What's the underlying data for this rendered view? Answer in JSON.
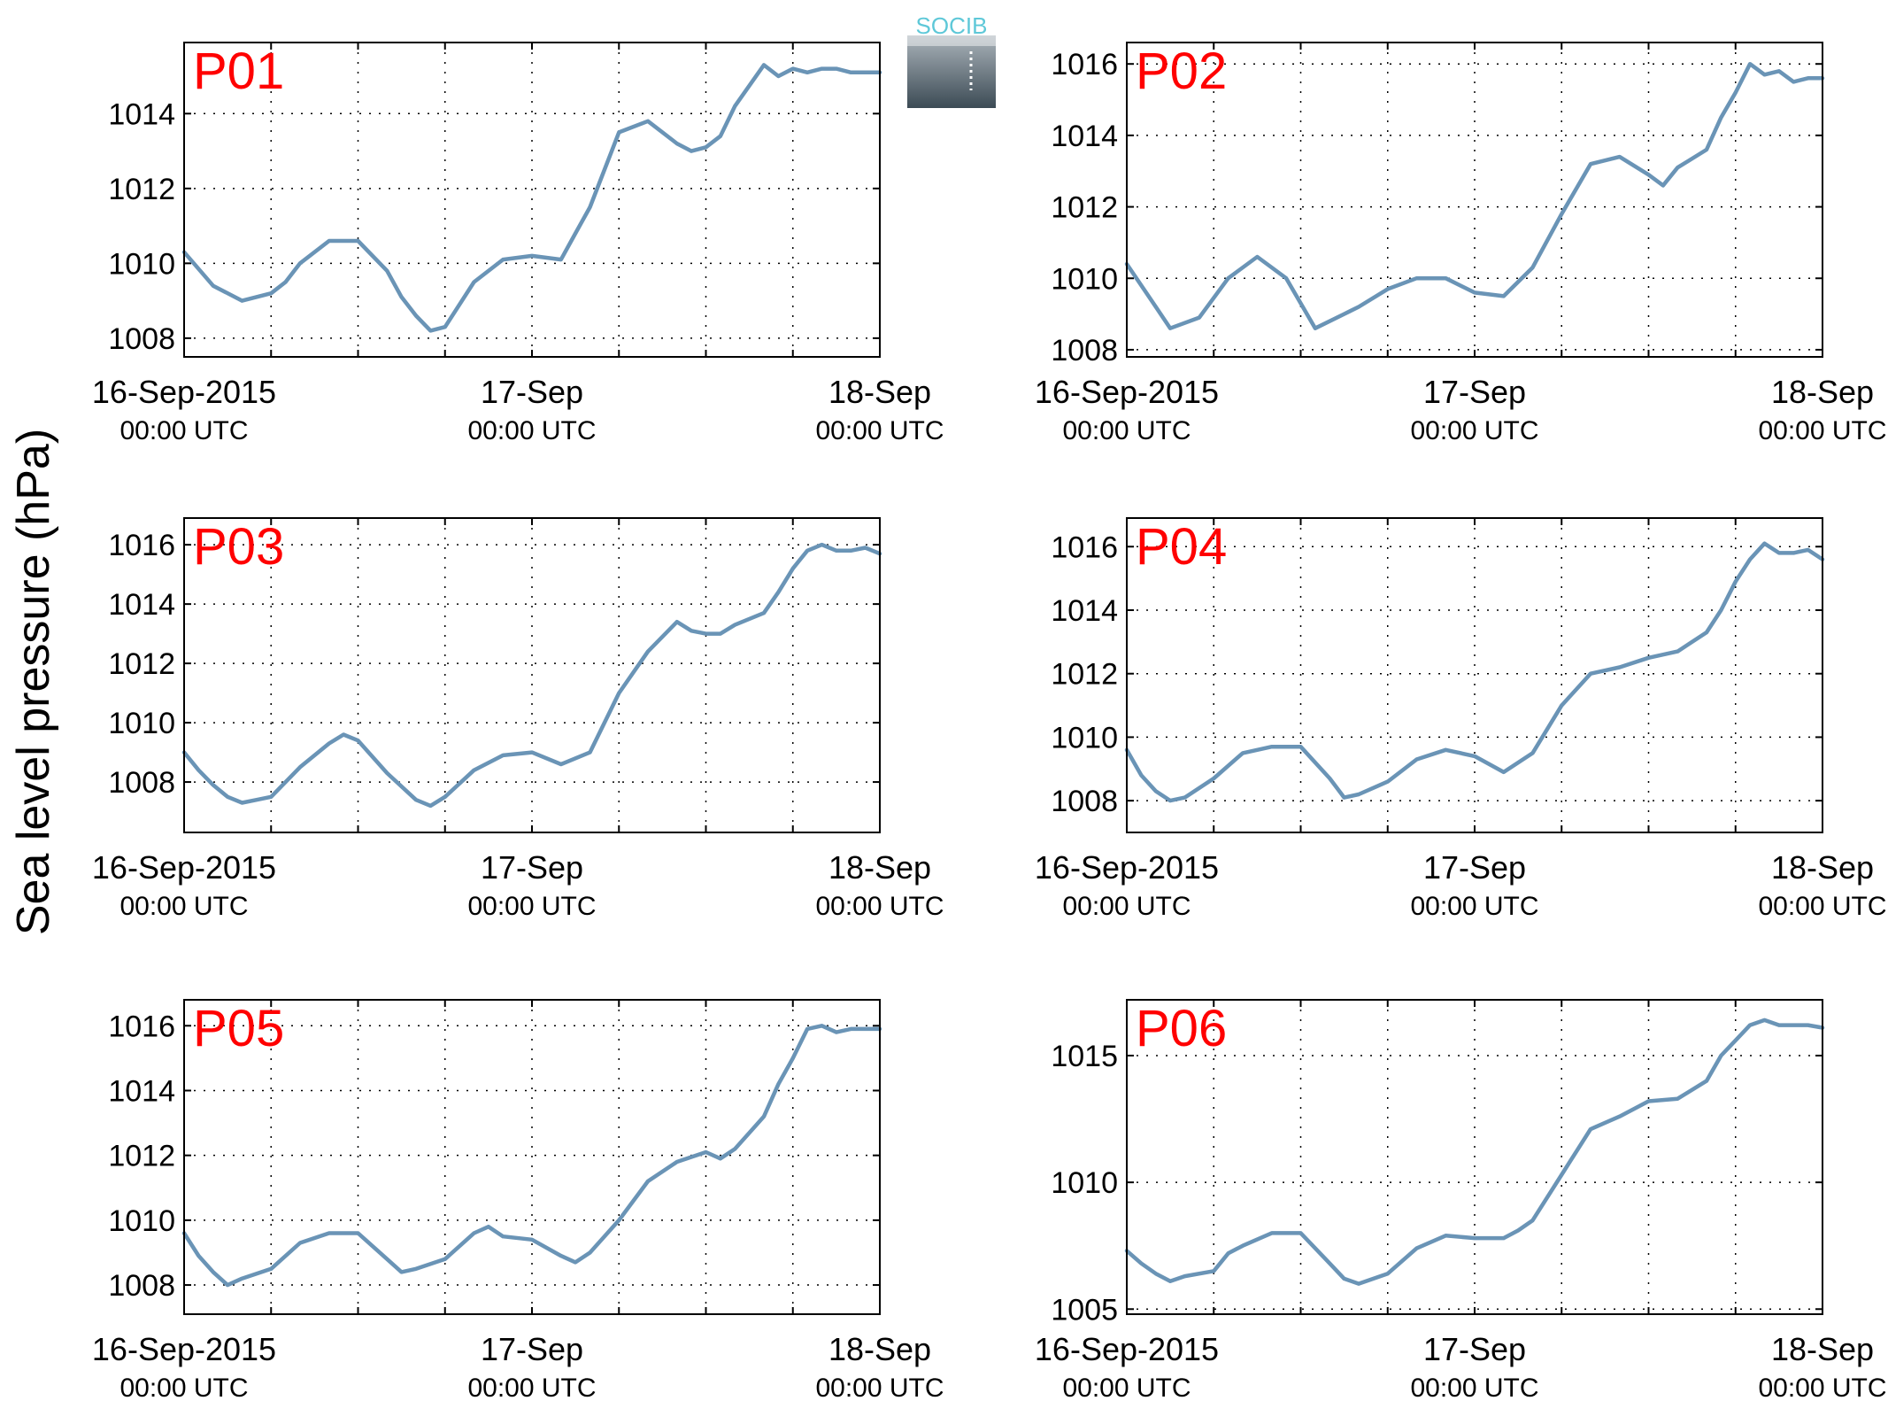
{
  "figure": {
    "ylabel": "Sea level pressure (hPa)",
    "logo_text": "SOCIB",
    "line_color": "#6a94b6",
    "panel_label_color": "#ff0000",
    "x_tick_labels": [
      {
        "date": "16-Sep-2015",
        "time": "00:00 UTC"
      },
      {
        "date": "17-Sep",
        "time": "00:00 UTC"
      },
      {
        "date": "18-Sep",
        "time": "00:00 UTC"
      }
    ]
  },
  "chart_data": [
    {
      "type": "line",
      "title": "P01",
      "xlabel": "",
      "ylabel": "Sea level pressure (hPa)",
      "x_unit": "hours since 16-Sep-2015 00:00 UTC",
      "xlim": [
        0,
        48
      ],
      "ylim": [
        1007.5,
        1015.9
      ],
      "yticks": [
        1008,
        1010,
        1012,
        1014
      ],
      "grid": true,
      "x": [
        0,
        2,
        4,
        6,
        7,
        8,
        10,
        12,
        14,
        15,
        16,
        17,
        18,
        20,
        22,
        24,
        26,
        27,
        28,
        30,
        32,
        34,
        35,
        36,
        37,
        38,
        40,
        41,
        42,
        43,
        44,
        45,
        46,
        47,
        48
      ],
      "values": [
        1010.3,
        1009.4,
        1009.0,
        1009.2,
        1009.5,
        1010.0,
        1010.6,
        1010.6,
        1009.8,
        1009.1,
        1008.6,
        1008.2,
        1008.3,
        1009.5,
        1010.1,
        1010.2,
        1010.1,
        1010.8,
        1011.5,
        1013.5,
        1013.8,
        1013.2,
        1013.0,
        1013.1,
        1013.4,
        1014.2,
        1015.3,
        1015.0,
        1015.2,
        1015.1,
        1015.2,
        1015.2,
        1015.1,
        1015.1,
        1015.1
      ]
    },
    {
      "type": "line",
      "title": "P02",
      "xlabel": "",
      "ylabel": "Sea level pressure (hPa)",
      "x_unit": "hours since 16-Sep-2015 00:00 UTC",
      "xlim": [
        0,
        48
      ],
      "ylim": [
        1007.8,
        1016.6
      ],
      "yticks": [
        1008,
        1010,
        1012,
        1014,
        1016
      ],
      "grid": true,
      "x": [
        0,
        2,
        3,
        5,
        7,
        9,
        11,
        13,
        15,
        16,
        18,
        20,
        22,
        24,
        26,
        28,
        30,
        32,
        34,
        36,
        37,
        38,
        40,
        41,
        42,
        43,
        44,
        45,
        46,
        47,
        48
      ],
      "values": [
        1010.4,
        1009.2,
        1008.6,
        1008.9,
        1010.0,
        1010.6,
        1010.0,
        1008.6,
        1009.0,
        1009.2,
        1009.7,
        1010.0,
        1010.0,
        1009.6,
        1009.5,
        1010.3,
        1011.8,
        1013.2,
        1013.4,
        1012.9,
        1012.6,
        1013.1,
        1013.6,
        1014.5,
        1015.2,
        1016.0,
        1015.7,
        1015.8,
        1015.5,
        1015.6,
        1015.6
      ]
    },
    {
      "type": "line",
      "title": "P03",
      "xlabel": "",
      "ylabel": "Sea level pressure (hPa)",
      "x_unit": "hours since 16-Sep-2015 00:00 UTC",
      "xlim": [
        0,
        48
      ],
      "ylim": [
        1006.3,
        1016.9
      ],
      "yticks": [
        1008,
        1010,
        1012,
        1014,
        1016
      ],
      "grid": true,
      "x": [
        0,
        1,
        2,
        3,
        4,
        5,
        6,
        8,
        10,
        11,
        12,
        14,
        16,
        17,
        18,
        20,
        22,
        24,
        26,
        28,
        30,
        32,
        34,
        35,
        36,
        37,
        38,
        40,
        41,
        42,
        43,
        44,
        45,
        46,
        47,
        48
      ],
      "values": [
        1009.0,
        1008.4,
        1007.9,
        1007.5,
        1007.3,
        1007.4,
        1007.5,
        1008.5,
        1009.3,
        1009.6,
        1009.4,
        1008.3,
        1007.4,
        1007.2,
        1007.5,
        1008.4,
        1008.9,
        1009.0,
        1008.6,
        1009.0,
        1011.0,
        1012.4,
        1013.4,
        1013.1,
        1013.0,
        1013.0,
        1013.3,
        1013.7,
        1014.4,
        1015.2,
        1015.8,
        1016.0,
        1015.8,
        1015.8,
        1015.9,
        1015.7
      ]
    },
    {
      "type": "line",
      "title": "P04",
      "xlabel": "",
      "ylabel": "Sea level pressure (hPa)",
      "x_unit": "hours since 16-Sep-2015 00:00 UTC",
      "xlim": [
        0,
        48
      ],
      "ylim": [
        1007.0,
        1016.9
      ],
      "yticks": [
        1008,
        1010,
        1012,
        1014,
        1016
      ],
      "grid": true,
      "x": [
        0,
        1,
        2,
        3,
        4,
        6,
        8,
        10,
        12,
        14,
        15,
        16,
        18,
        20,
        22,
        24,
        26,
        28,
        30,
        32,
        34,
        36,
        38,
        40,
        41,
        42,
        43,
        44,
        45,
        46,
        47,
        48
      ],
      "values": [
        1009.6,
        1008.8,
        1008.3,
        1008.0,
        1008.1,
        1008.7,
        1009.5,
        1009.7,
        1009.7,
        1008.7,
        1008.1,
        1008.2,
        1008.6,
        1009.3,
        1009.6,
        1009.4,
        1008.9,
        1009.5,
        1011.0,
        1012.0,
        1012.2,
        1012.5,
        1012.7,
        1013.3,
        1014.0,
        1014.9,
        1015.6,
        1016.1,
        1015.8,
        1015.8,
        1015.9,
        1015.6
      ]
    },
    {
      "type": "line",
      "title": "P05",
      "xlabel": "",
      "ylabel": "Sea level pressure (hPa)",
      "x_unit": "hours since 16-Sep-2015 00:00 UTC",
      "xlim": [
        0,
        48
      ],
      "ylim": [
        1007.1,
        1016.8
      ],
      "yticks": [
        1008,
        1010,
        1012,
        1014,
        1016
      ],
      "grid": true,
      "x": [
        0,
        1,
        2,
        3,
        4,
        6,
        8,
        10,
        12,
        14,
        15,
        16,
        18,
        20,
        21,
        22,
        24,
        26,
        27,
        28,
        30,
        32,
        34,
        36,
        37,
        38,
        40,
        41,
        42,
        43,
        44,
        45,
        46,
        47,
        48
      ],
      "values": [
        1009.6,
        1008.9,
        1008.4,
        1008.0,
        1008.2,
        1008.5,
        1009.3,
        1009.6,
        1009.6,
        1008.8,
        1008.4,
        1008.5,
        1008.8,
        1009.6,
        1009.8,
        1009.5,
        1009.4,
        1008.9,
        1008.7,
        1009.0,
        1010.0,
        1011.2,
        1011.8,
        1012.1,
        1011.9,
        1012.2,
        1013.2,
        1014.2,
        1015.0,
        1015.9,
        1016.0,
        1015.8,
        1015.9,
        1015.9,
        1015.9
      ]
    },
    {
      "type": "line",
      "title": "P06",
      "xlabel": "",
      "ylabel": "Sea level pressure (hPa)",
      "x_unit": "hours since 16-Sep-2015 00:00 UTC",
      "xlim": [
        0,
        48
      ],
      "ylim": [
        1004.8,
        1017.2
      ],
      "yticks": [
        1005,
        1010,
        1015
      ],
      "grid": true,
      "x": [
        0,
        1,
        2,
        3,
        4,
        6,
        7,
        8,
        10,
        12,
        14,
        15,
        16,
        18,
        20,
        22,
        24,
        26,
        27,
        28,
        30,
        32,
        34,
        36,
        38,
        40,
        41,
        42,
        43,
        44,
        45,
        46,
        47,
        48
      ],
      "values": [
        1007.3,
        1006.8,
        1006.4,
        1006.1,
        1006.3,
        1006.5,
        1007.2,
        1007.5,
        1008.0,
        1008.0,
        1006.8,
        1006.2,
        1006.0,
        1006.4,
        1007.4,
        1007.9,
        1007.8,
        1007.8,
        1008.1,
        1008.5,
        1010.3,
        1012.1,
        1012.6,
        1013.2,
        1013.3,
        1014.0,
        1015.0,
        1015.6,
        1016.2,
        1016.4,
        1016.2,
        1016.2,
        1016.2,
        1016.1
      ]
    }
  ]
}
